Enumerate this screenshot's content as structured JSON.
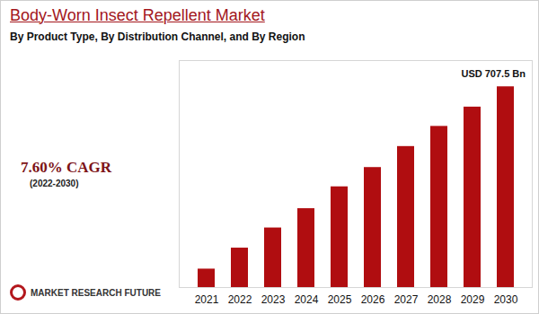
{
  "chart_data": {
    "type": "bar",
    "title": "Body-Worn Insect Repellent Market",
    "subtitle": "By Product Type, By Distribution Channel, and By Region",
    "cagr": "7.60% CAGR",
    "cagr_period": "(2022-2030)",
    "source": "MARKET RESEARCH FUTURE",
    "annotation": "USD 707.5 Bn",
    "categories": [
      "2021",
      "2022",
      "2023",
      "2024",
      "2025",
      "2026",
      "2027",
      "2028",
      "2029",
      "2030"
    ],
    "values": [
      65,
      139,
      210,
      278,
      355,
      423,
      497,
      568,
      636,
      707.5
    ],
    "color": "#b00d10",
    "ylim": [
      0,
      800
    ],
    "yticks": [],
    "grid": false,
    "tick_labels": "x"
  }
}
